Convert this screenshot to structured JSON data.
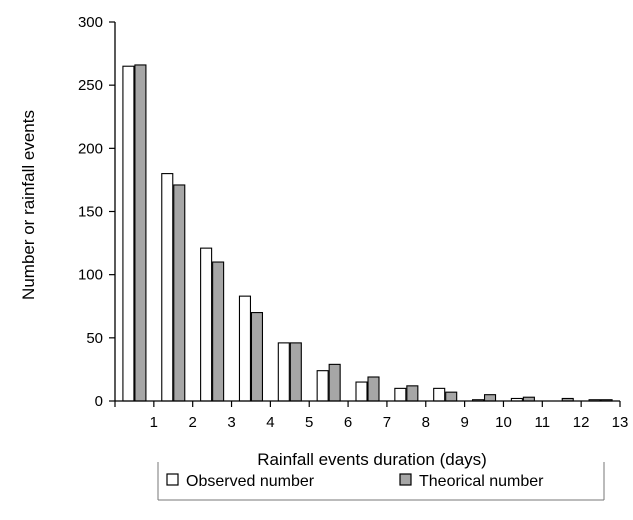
{
  "chart_data": {
    "type": "bar",
    "title": "",
    "xlabel": "Rainfall events duration (days)",
    "ylabel": "Number or rainfall events",
    "categories": [
      "1",
      "2",
      "3",
      "4",
      "5",
      "6",
      "7",
      "8",
      "9",
      "10",
      "11",
      "12",
      "13"
    ],
    "series": [
      {
        "name": "Observed number",
        "color": "#ffffff",
        "values": [
          265,
          180,
          121,
          83,
          46,
          24,
          15,
          10,
          10,
          1,
          2,
          0,
          1
        ]
      },
      {
        "name": "Theorical number",
        "color": "#a6a6a6",
        "values": [
          266,
          171,
          110,
          70,
          46,
          29,
          19,
          12,
          7,
          5,
          3,
          2,
          1
        ]
      }
    ],
    "y_ticks": [
      "0",
      "50",
      "100",
      "150",
      "200",
      "250",
      "300"
    ],
    "ylim": [
      0,
      300
    ],
    "grid": false,
    "legend_position": "bottom"
  }
}
